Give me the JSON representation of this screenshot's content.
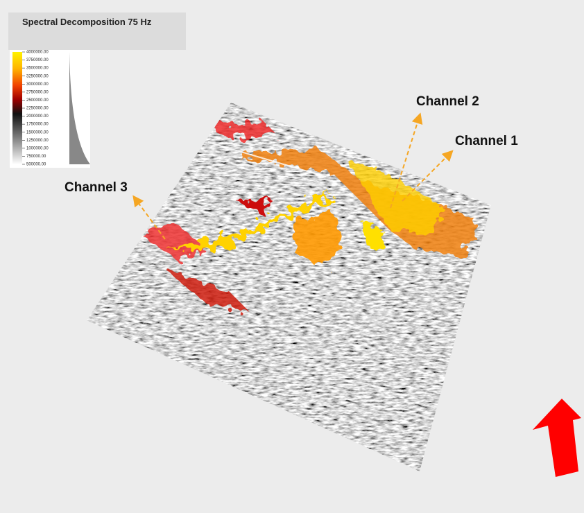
{
  "title": "Spectral Decomposition 75 Hz",
  "colorbar": {
    "ticks": [
      {
        "value": 4000000,
        "label": "4000000.00"
      },
      {
        "value": 3750000,
        "label": "3750000.00"
      },
      {
        "value": 3500000,
        "label": "3500000.00"
      },
      {
        "value": 3250000,
        "label": "3250000.00"
      },
      {
        "value": 3000000,
        "label": "3000000.00"
      },
      {
        "value": 2750000,
        "label": "2750000.00"
      },
      {
        "value": 2500000,
        "label": "2500000.00"
      },
      {
        "value": 2250000,
        "label": "2250000.00"
      },
      {
        "value": 2000000,
        "label": "2000000.00"
      },
      {
        "value": 1750000,
        "label": "1750000.00"
      },
      {
        "value": 1500000,
        "label": "1500000.00"
      },
      {
        "value": 1250000,
        "label": "1250000.00"
      },
      {
        "value": 1000000,
        "label": "1000000.00"
      },
      {
        "value": 750000,
        "label": "750000.00"
      },
      {
        "value": 500000,
        "label": "500000.00"
      }
    ]
  },
  "annotations": [
    "Channel 1",
    "Channel 2",
    "Channel 3"
  ]
}
